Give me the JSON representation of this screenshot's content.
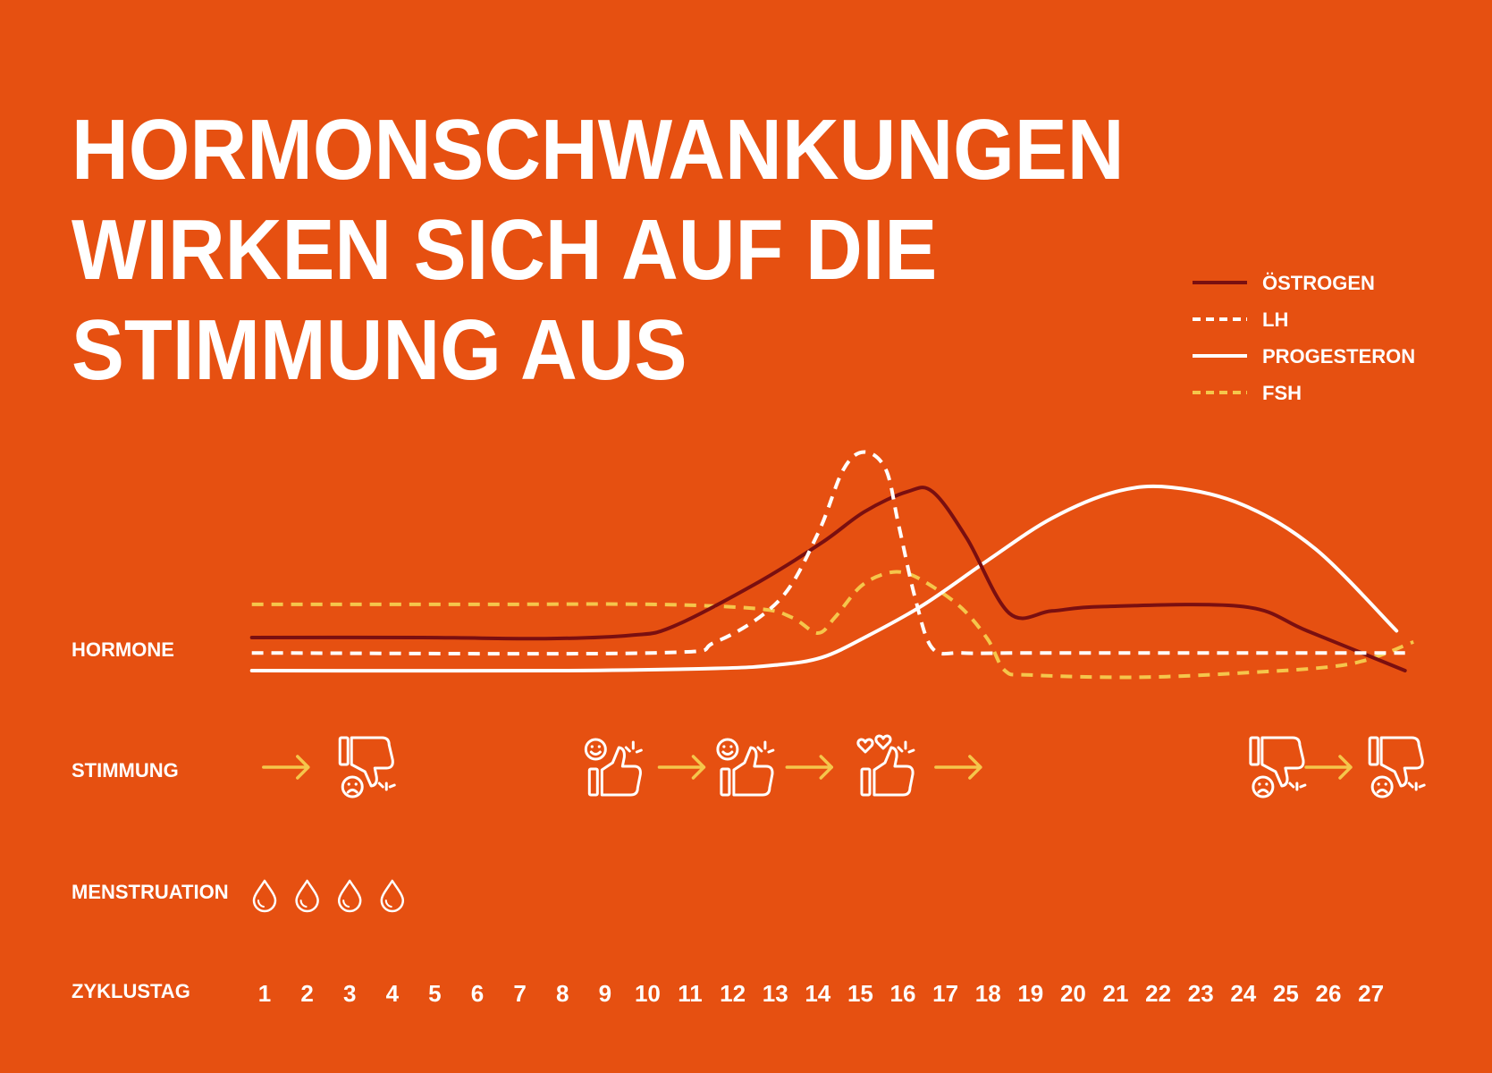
{
  "title": {
    "line1": "HORMONSCHWANKUNGEN",
    "line2": "WIRKEN SICH AUF DIE",
    "line3": "STIMMUNG AUS"
  },
  "colors": {
    "background": "#E65011",
    "oestrogen": "#7A0F10",
    "lh": "#FFFFFF",
    "progesteron": "#FFFFFF",
    "fsh": "#F5C64B",
    "arrow": "#F5C64B",
    "icon": "#FFFFFF"
  },
  "rows": {
    "hormone": "HORMONE",
    "stimmung": "STIMMUNG",
    "menstruation": "MENSTRUATION",
    "zyklustag": "ZYKLUSTAG"
  },
  "legend": [
    {
      "label": "ÖSTROGEN",
      "color": "#7A0F10",
      "dashed": false
    },
    {
      "label": "LH",
      "color": "#FFFFFF",
      "dashed": true
    },
    {
      "label": "PROGESTERON",
      "color": "#FFFFFF",
      "dashed": false
    },
    {
      "label": "FSH",
      "color": "#F5C64B",
      "dashed": true
    }
  ],
  "chart_data": {
    "type": "line",
    "x": [
      1,
      2,
      3,
      4,
      5,
      6,
      7,
      8,
      9,
      10,
      11,
      12,
      13,
      14,
      15,
      16,
      17,
      18,
      19,
      20,
      21,
      22,
      23,
      24,
      25,
      26,
      27
    ],
    "xlabel": "ZYKLUSTAG",
    "ylabel": "HORMONE",
    "ylim": [
      0,
      100
    ],
    "grid": false,
    "legend_position": "top-right",
    "series": [
      {
        "name": "ÖSTROGEN",
        "style": "solid",
        "color": "#7A0F10",
        "x": [
          0.7,
          4.7,
          7.6,
          9.6,
          10.6,
          12.6,
          14.1,
          15.1,
          16.1,
          16.7,
          17.5,
          18.5,
          19.5,
          20.7,
          24.0,
          25.5,
          27.8
        ],
        "values": [
          15,
          15,
          14.5,
          16,
          20,
          40,
          58,
          72,
          81,
          81,
          60,
          26,
          27,
          29,
          29,
          18,
          0
        ]
      },
      {
        "name": "LH",
        "style": "dashed",
        "color": "#FFFFFF",
        "x": [
          0.7,
          10.1,
          11.6,
          13.1,
          14.0,
          14.6,
          15.1,
          15.6,
          15.9,
          16.3,
          16.7,
          17.4,
          19.0,
          24.0,
          27.8
        ],
        "values": [
          8,
          8,
          13,
          32,
          62,
          91,
          99,
          91,
          66,
          32,
          10,
          8,
          8,
          8,
          8
        ]
      },
      {
        "name": "PROGESTERON",
        "style": "solid",
        "color": "#FFFFFF",
        "x": [
          0.7,
          8.0,
          11.6,
          13.0,
          14.1,
          15.2,
          16.5,
          18.0,
          19.5,
          21.0,
          22.3,
          24.0,
          25.7,
          27.6
        ],
        "values": [
          0,
          0,
          1,
          2.5,
          6,
          16,
          30,
          50,
          69,
          81,
          83,
          75,
          55,
          18
        ]
      },
      {
        "name": "FSH",
        "style": "dashed",
        "color": "#F5C64B",
        "x": [
          0.7,
          6.0,
          10.1,
          12.6,
          13.4,
          14.0,
          14.4,
          15.0,
          15.6,
          16.1,
          16.7,
          17.4,
          18.0,
          18.4,
          19.0,
          21.5,
          24.0,
          26.5,
          28.0
        ],
        "values": [
          30,
          30,
          30,
          28,
          24,
          17,
          24,
          38,
          44,
          44,
          38,
          28,
          14,
          0,
          -2,
          -3,
          -1,
          3,
          13
        ]
      }
    ]
  },
  "stimmung": {
    "arrows": [
      1.5,
      10.8,
      13.8,
      17.3,
      26.0
    ],
    "icons": [
      {
        "type": "thumbs-down-sad",
        "x": 3.4
      },
      {
        "type": "thumbs-up-smile",
        "x": 9.2
      },
      {
        "type": "thumbs-up-smile",
        "x": 12.3
      },
      {
        "type": "thumbs-up-heart",
        "x": 15.6
      },
      {
        "type": "thumbs-down-sad",
        "x": 24.8
      },
      {
        "type": "thumbs-down-sad",
        "x": 27.6
      }
    ]
  },
  "menstruation_days": [
    1,
    2,
    3,
    4
  ]
}
